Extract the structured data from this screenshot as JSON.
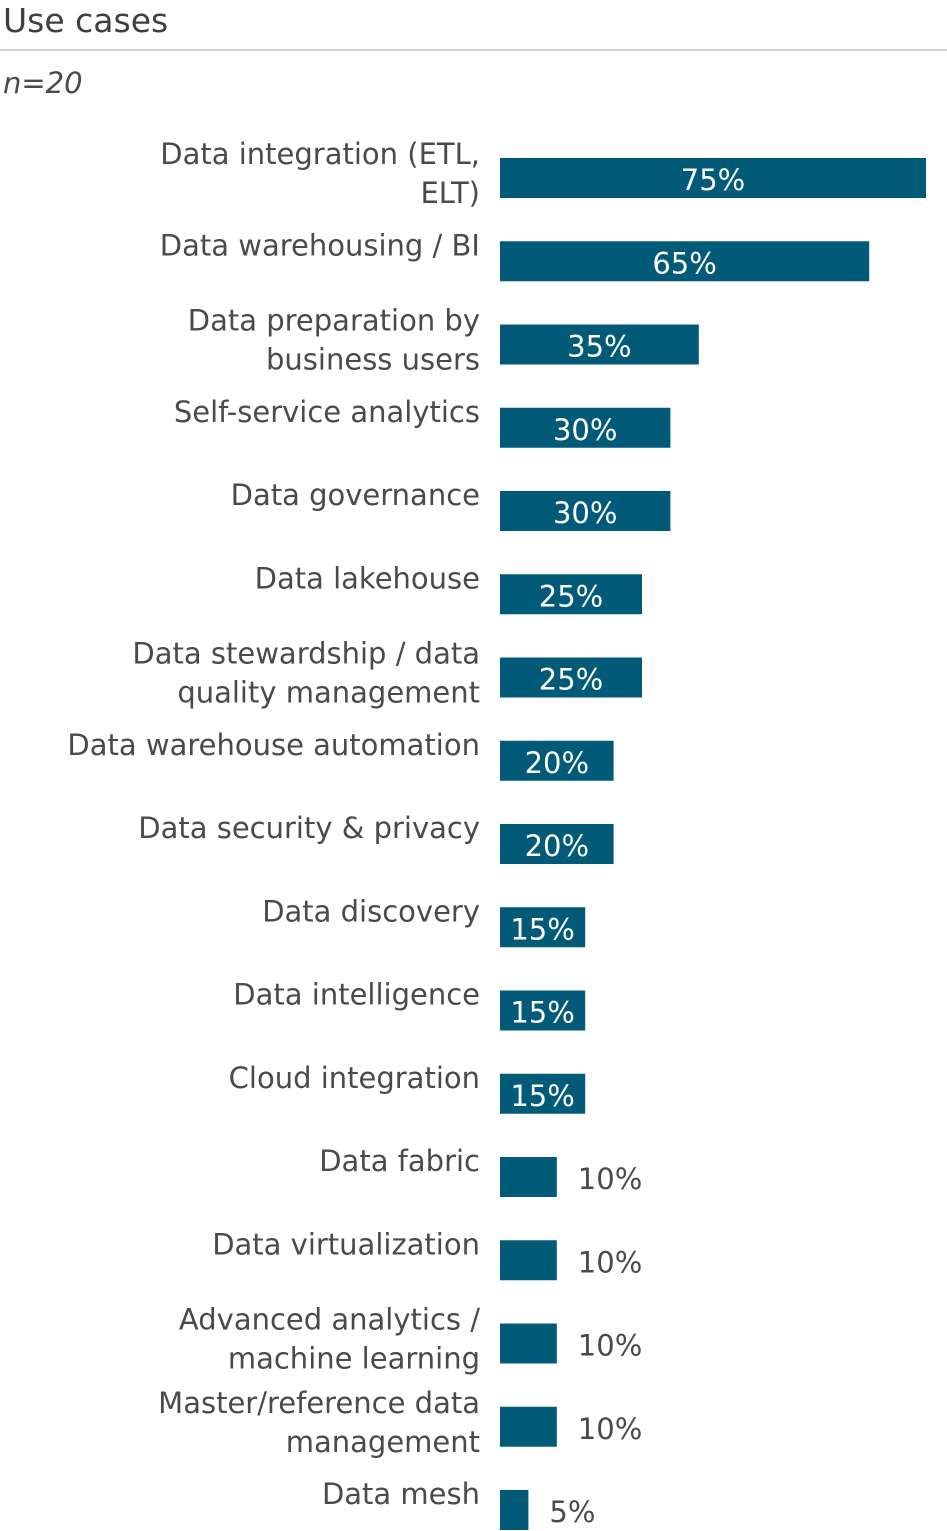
{
  "chart_data": {
    "type": "bar",
    "orientation": "horizontal",
    "title": "Use cases",
    "subtitle": "n=20",
    "xlabel": "",
    "ylabel": "",
    "xlim": [
      0,
      75
    ],
    "grid": false,
    "legend": "none",
    "bar_color": "#005a78",
    "inside_label_color": "#ffffff",
    "outside_label_color": "#4a4a4a",
    "categories": [
      "Data integration (ETL, ELT)",
      "Data warehousing / BI",
      "Data preparation by business users",
      "Self-service analytics",
      "Data governance",
      "Data lakehouse",
      "Data stewardship / data quality management",
      "Data warehouse automation",
      "Data security & privacy",
      "Data discovery",
      "Data intelligence",
      "Cloud integration",
      "Data fabric",
      "Data virtualization",
      "Advanced analytics / machine learning",
      "Master/reference data management",
      "Data mesh"
    ],
    "category_label_lines": [
      [
        "Data integration (ETL,",
        "ELT)"
      ],
      [
        "Data warehousing / BI"
      ],
      [
        "Data preparation by",
        "business users"
      ],
      [
        "Self-service analytics"
      ],
      [
        "Data governance"
      ],
      [
        "Data lakehouse"
      ],
      [
        "Data stewardship / data",
        "quality management"
      ],
      [
        "Data warehouse automation"
      ],
      [
        "Data security & privacy"
      ],
      [
        "Data discovery"
      ],
      [
        "Data intelligence"
      ],
      [
        "Cloud integration"
      ],
      [
        "Data fabric"
      ],
      [
        "Data virtualization"
      ],
      [
        "Advanced analytics /",
        "machine learning"
      ],
      [
        "Master/reference data",
        "management"
      ],
      [
        "Data mesh"
      ]
    ],
    "values": [
      75,
      65,
      35,
      30,
      30,
      25,
      25,
      20,
      20,
      15,
      15,
      15,
      10,
      10,
      10,
      10,
      5
    ],
    "value_labels": [
      "75%",
      "65%",
      "35%",
      "30%",
      "30%",
      "25%",
      "25%",
      "20%",
      "20%",
      "15%",
      "15%",
      "15%",
      "10%",
      "10%",
      "10%",
      "10%",
      "5%"
    ]
  }
}
